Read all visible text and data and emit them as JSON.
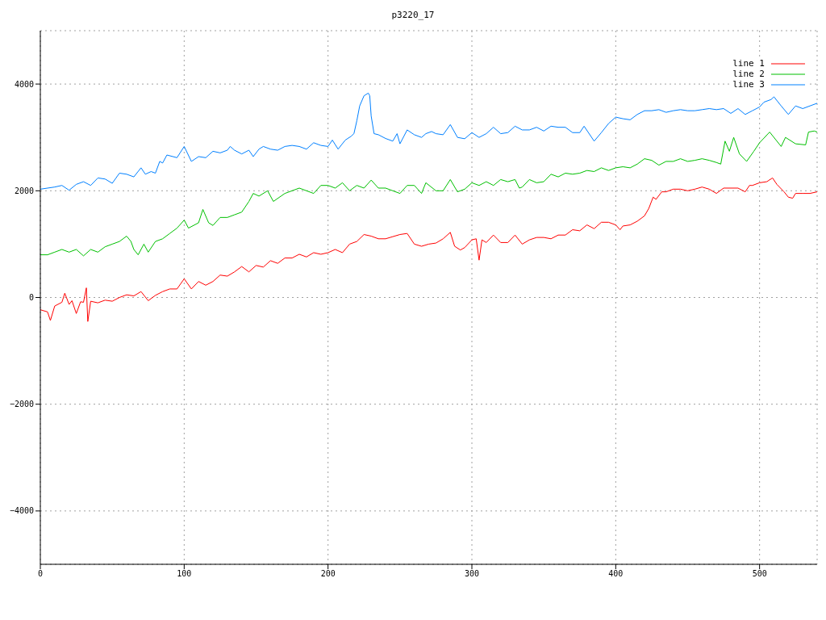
{
  "chart_data": {
    "type": "line",
    "title": "p3220_17",
    "xlim": [
      0,
      540
    ],
    "xticks": [
      0,
      100,
      200,
      300,
      400,
      500
    ],
    "ylim": [
      -5000,
      5000
    ],
    "yticks": [
      -4000,
      -2000,
      0,
      2000,
      4000
    ],
    "grid": true,
    "legend": "top right",
    "series": [
      {
        "name": "line 1",
        "color": "#ff0000",
        "x": [
          0,
          5,
          7,
          10,
          15,
          17,
          20,
          22,
          25,
          28,
          30,
          32,
          33,
          35,
          40,
          45,
          50,
          55,
          60,
          65,
          70,
          75,
          80,
          85,
          90,
          95,
          100,
          105,
          110,
          115,
          120,
          125,
          130,
          135,
          140,
          145,
          150,
          155,
          160,
          165,
          170,
          175,
          180,
          185,
          190,
          195,
          200,
          205,
          210,
          215,
          220,
          225,
          230,
          235,
          240,
          245,
          250,
          255,
          260,
          265,
          270,
          275,
          280,
          285,
          288,
          292,
          295,
          300,
          303,
          305,
          307,
          310,
          315,
          320,
          325,
          330,
          335,
          340,
          345,
          350,
          355,
          360,
          365,
          370,
          375,
          380,
          385,
          390,
          395,
          400,
          403,
          405,
          410,
          415,
          420,
          423,
          426,
          428,
          432,
          435,
          440,
          445,
          450,
          455,
          460,
          465,
          470,
          475,
          480,
          485,
          490,
          493,
          495,
          500,
          505,
          509,
          512,
          517,
          520,
          523,
          525,
          530,
          535,
          540
        ],
        "values": [
          -230,
          -270,
          -430,
          -160,
          -90,
          80,
          -130,
          -60,
          -300,
          -80,
          -90,
          180,
          -450,
          -70,
          -100,
          -50,
          -70,
          0,
          50,
          30,
          110,
          -60,
          40,
          110,
          160,
          160,
          350,
          160,
          300,
          230,
          300,
          420,
          400,
          480,
          580,
          480,
          600,
          570,
          690,
          640,
          740,
          740,
          810,
          760,
          840,
          810,
          840,
          900,
          840,
          1000,
          1050,
          1180,
          1150,
          1100,
          1100,
          1140,
          1180,
          1200,
          1000,
          960,
          1000,
          1020,
          1100,
          1220,
          960,
          890,
          935,
          1080,
          1100,
          700,
          1080,
          1030,
          1170,
          1030,
          1030,
          1170,
          1000,
          1080,
          1125,
          1125,
          1100,
          1170,
          1170,
          1270,
          1250,
          1360,
          1290,
          1410,
          1410,
          1360,
          1270,
          1340,
          1360,
          1430,
          1530,
          1670,
          1880,
          1840,
          1980,
          1980,
          2030,
          2030,
          2000,
          2030,
          2070,
          2030,
          1950,
          2050,
          2050,
          2050,
          1980,
          2100,
          2100,
          2150,
          2170,
          2240,
          2120,
          1980,
          1880,
          1860,
          1950,
          1950,
          1950,
          1980
        ]
      },
      {
        "name": "line 2",
        "color": "#00c000",
        "x": [
          0,
          5,
          10,
          15,
          20,
          25,
          30,
          35,
          40,
          45,
          50,
          55,
          60,
          63,
          65,
          68,
          72,
          75,
          80,
          85,
          90,
          95,
          100,
          103,
          110,
          113,
          117,
          120,
          125,
          130,
          135,
          140,
          145,
          148,
          152,
          158,
          162,
          170,
          175,
          180,
          190,
          195,
          200,
          205,
          210,
          215,
          220,
          225,
          230,
          235,
          240,
          245,
          250,
          255,
          260,
          265,
          268,
          275,
          280,
          285,
          290,
          295,
          300,
          305,
          310,
          315,
          320,
          325,
          330,
          333,
          335,
          340,
          345,
          350,
          355,
          360,
          365,
          370,
          375,
          380,
          385,
          390,
          395,
          400,
          405,
          410,
          415,
          420,
          425,
          430,
          435,
          440,
          445,
          450,
          455,
          460,
          465,
          470,
          473,
          476,
          479,
          482,
          486,
          491,
          496,
          500,
          507,
          515,
          518,
          525,
          532,
          534,
          538,
          540
        ],
        "values": [
          800,
          800,
          850,
          900,
          850,
          900,
          780,
          900,
          850,
          950,
          1000,
          1050,
          1150,
          1050,
          900,
          800,
          1000,
          850,
          1050,
          1100,
          1200,
          1300,
          1450,
          1300,
          1400,
          1650,
          1400,
          1350,
          1500,
          1500,
          1550,
          1600,
          1800,
          1950,
          1900,
          2000,
          1800,
          1950,
          2000,
          2050,
          1950,
          2100,
          2100,
          2050,
          2150,
          2000,
          2100,
          2050,
          2200,
          2050,
          2050,
          2000,
          1950,
          2100,
          2100,
          1950,
          2150,
          2000,
          2000,
          2210,
          1980,
          2030,
          2150,
          2100,
          2170,
          2100,
          2210,
          2170,
          2210,
          2050,
          2070,
          2210,
          2150,
          2170,
          2310,
          2260,
          2330,
          2310,
          2330,
          2380,
          2360,
          2430,
          2380,
          2430,
          2450,
          2430,
          2500,
          2600,
          2570,
          2480,
          2550,
          2550,
          2600,
          2550,
          2570,
          2600,
          2570,
          2530,
          2500,
          2930,
          2740,
          3000,
          2690,
          2550,
          2740,
          2900,
          3100,
          2830,
          3000,
          2880,
          2860,
          3100,
          3120,
          3100
        ]
      },
      {
        "name": "line 3",
        "color": "#0080ff",
        "x": [
          0,
          10,
          15,
          20,
          25,
          30,
          35,
          40,
          45,
          50,
          55,
          60,
          65,
          70,
          73,
          77,
          80,
          83,
          85,
          88,
          95,
          100,
          105,
          110,
          115,
          120,
          125,
          130,
          132,
          135,
          140,
          145,
          148,
          152,
          155,
          160,
          165,
          170,
          175,
          180,
          185,
          190,
          195,
          200,
          203,
          207,
          212,
          216,
          218,
          220,
          222,
          225,
          228,
          229,
          230,
          232,
          235,
          240,
          245,
          248,
          250,
          255,
          260,
          265,
          268,
          272,
          275,
          280,
          285,
          290,
          295,
          300,
          305,
          310,
          315,
          320,
          325,
          330,
          335,
          340,
          345,
          350,
          355,
          360,
          365,
          370,
          375,
          378,
          385,
          390,
          395,
          400,
          405,
          410,
          415,
          420,
          425,
          430,
          435,
          440,
          445,
          450,
          455,
          460,
          465,
          470,
          475,
          480,
          485,
          490,
          495,
          500,
          503,
          508,
          510,
          515,
          520,
          525,
          530,
          540
        ],
        "values": [
          2030,
          2070,
          2100,
          2010,
          2120,
          2170,
          2100,
          2240,
          2220,
          2140,
          2330,
          2310,
          2260,
          2430,
          2310,
          2360,
          2330,
          2550,
          2520,
          2670,
          2620,
          2830,
          2550,
          2640,
          2620,
          2740,
          2710,
          2760,
          2830,
          2760,
          2690,
          2760,
          2640,
          2780,
          2830,
          2780,
          2760,
          2830,
          2850,
          2830,
          2780,
          2900,
          2850,
          2830,
          2950,
          2780,
          2950,
          3020,
          3070,
          3310,
          3590,
          3780,
          3830,
          3780,
          3400,
          3070,
          3050,
          2980,
          2930,
          3070,
          2880,
          3140,
          3050,
          3000,
          3070,
          3110,
          3070,
          3050,
          3240,
          3000,
          2975,
          3090,
          3000,
          3070,
          3190,
          3070,
          3090,
          3210,
          3140,
          3140,
          3190,
          3120,
          3210,
          3190,
          3190,
          3090,
          3090,
          3210,
          2930,
          3090,
          3260,
          3380,
          3350,
          3330,
          3430,
          3500,
          3500,
          3520,
          3470,
          3500,
          3520,
          3500,
          3500,
          3520,
          3540,
          3520,
          3540,
          3450,
          3540,
          3430,
          3500,
          3570,
          3660,
          3710,
          3760,
          3590,
          3430,
          3590,
          3540,
          3640
        ]
      }
    ]
  }
}
